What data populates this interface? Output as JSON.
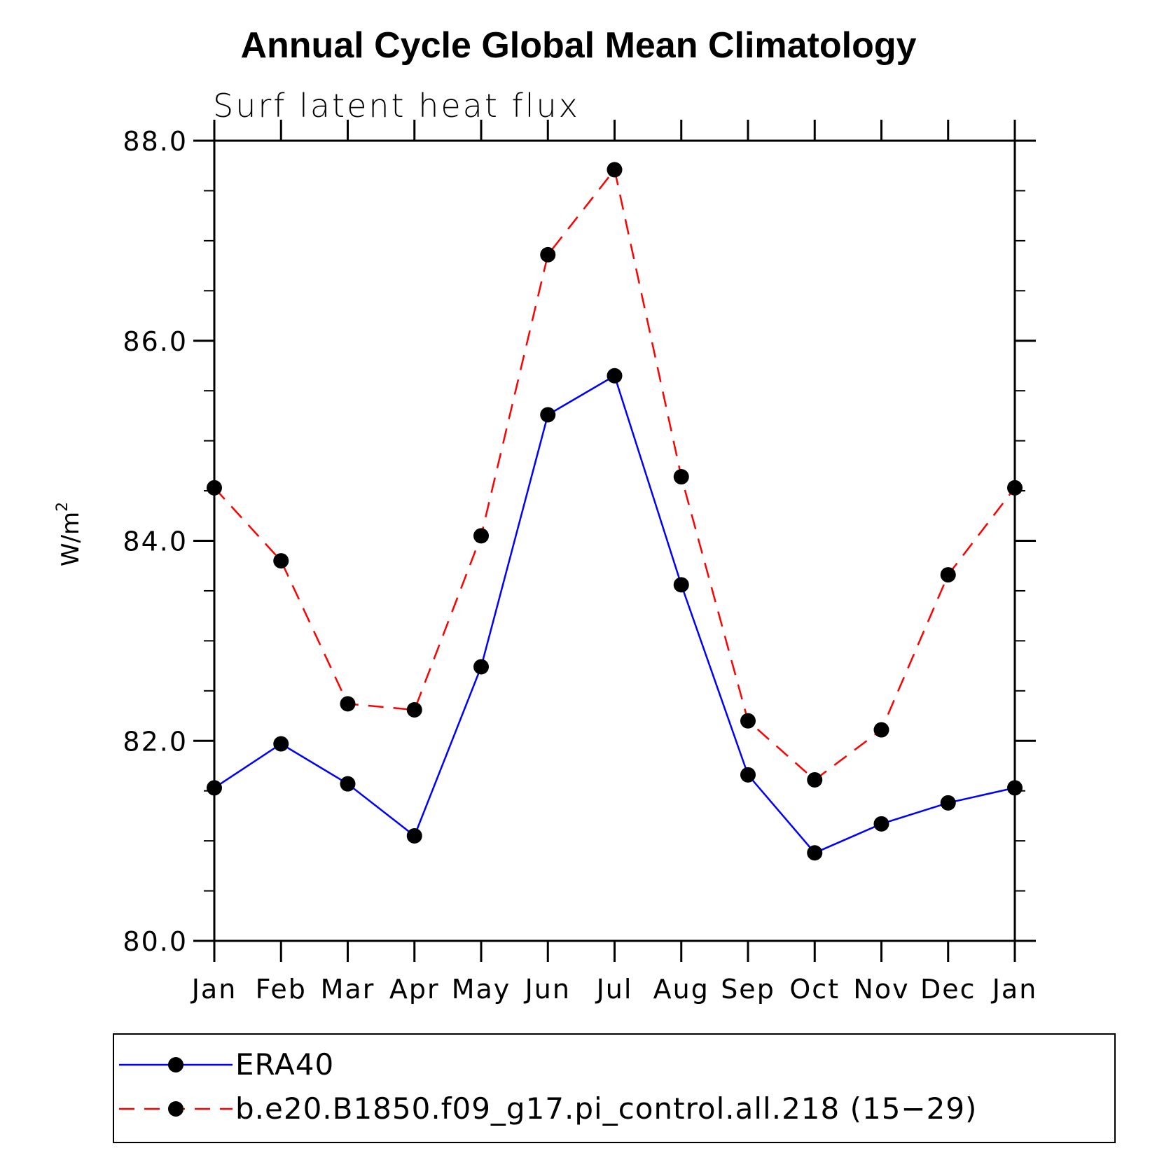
{
  "chart_data": {
    "type": "line",
    "title": "Annual Cycle Global Mean Climatology",
    "subtitle": "Surf latent heat flux",
    "xlabel": "",
    "ylabel": "W/m",
    "ylabel_superscript": "2",
    "categories": [
      "Jan",
      "Feb",
      "Mar",
      "Apr",
      "May",
      "Jun",
      "Jul",
      "Aug",
      "Sep",
      "Oct",
      "Nov",
      "Dec",
      "Jan"
    ],
    "ylim": [
      80.0,
      88.0
    ],
    "yticks": [
      "80.0",
      "82.0",
      "84.0",
      "86.0",
      "88.0"
    ],
    "y_minor_step": 0.5,
    "grid": false,
    "legend_placement": "bottom",
    "series": [
      {
        "name": "ERA40",
        "color": "#0000ff",
        "line_style": "solid",
        "marker": "filled-circle",
        "values": [
          81.53,
          81.97,
          81.57,
          81.05,
          82.74,
          85.26,
          85.65,
          83.56,
          81.66,
          80.88,
          81.17,
          81.38,
          81.53
        ]
      },
      {
        "name": "b.e20.B1850.f09_g17.pi_control.all.218 (15−29)",
        "color": "#ff0000",
        "line_style": "dashed",
        "marker": "filled-circle",
        "values": [
          84.53,
          83.8,
          82.37,
          82.31,
          84.05,
          86.86,
          87.71,
          84.64,
          82.2,
          81.61,
          82.11,
          83.66,
          84.53
        ]
      }
    ]
  }
}
